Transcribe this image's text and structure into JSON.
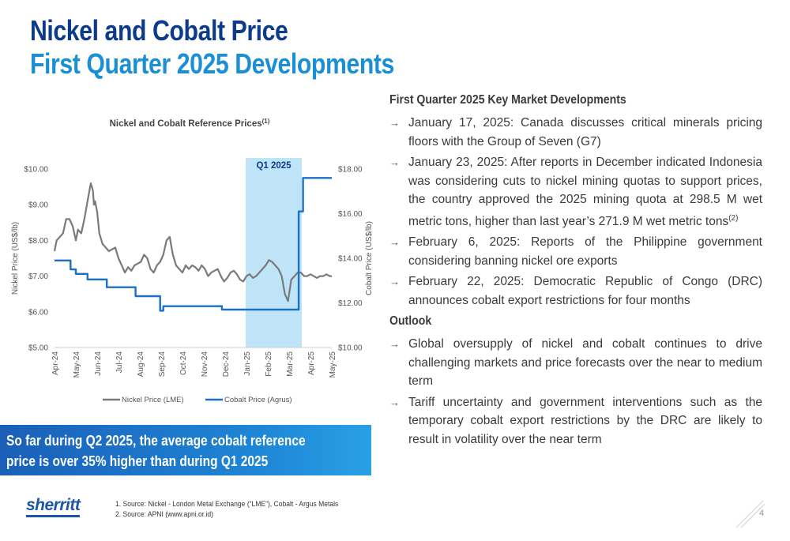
{
  "title": {
    "line1": "Nickel and Cobalt Price",
    "line2": "First Quarter 2025 Developments"
  },
  "chart_data": {
    "type": "line",
    "title": "Nickel and Cobalt Reference Prices",
    "title_sup": "(1)",
    "highlight_label": "Q1 2025",
    "highlight_range": [
      "Jan-25",
      "Mar-25"
    ],
    "categories": [
      "Apr-24",
      "May-24",
      "Jun-24",
      "Jul-24",
      "Aug-24",
      "Sep-24",
      "Oct-24",
      "Nov-24",
      "Dec-24",
      "Jan-25",
      "Feb-25",
      "Mar-25",
      "Apr-25",
      "May-25"
    ],
    "y_left": {
      "label": "Nickel Price (US$/lb)",
      "min": 5,
      "max": 10,
      "ticks": [
        "$5.00",
        "$6.00",
        "$7.00",
        "$8.00",
        "$9.00",
        "$10.00"
      ]
    },
    "y_right": {
      "label": "Cobalt Price (US$/lb)",
      "min": 10,
      "max": 18,
      "ticks": [
        "$10.00",
        "$12.00",
        "$14.00",
        "$16.00",
        "$18.00"
      ]
    },
    "legend_position": "bottom",
    "series": [
      {
        "name": "Nickel Price (LME)",
        "axis": "left",
        "color": "#7a7a7a",
        "x": [
          0,
          0.1,
          0.25,
          0.4,
          0.55,
          0.7,
          0.85,
          1.0,
          1.1,
          1.25,
          1.4,
          1.55,
          1.7,
          1.8,
          1.85,
          1.9,
          2.0,
          2.1,
          2.25,
          2.4,
          2.55,
          2.7,
          2.85,
          3.0,
          3.15,
          3.3,
          3.45,
          3.6,
          3.75,
          3.9,
          4.05,
          4.2,
          4.35,
          4.5,
          4.65,
          4.8,
          4.95,
          5.1,
          5.25,
          5.4,
          5.55,
          5.7,
          5.85,
          6.0,
          6.15,
          6.3,
          6.45,
          6.6,
          6.75,
          6.9,
          7.05,
          7.2,
          7.35,
          7.5,
          7.65,
          7.8,
          7.95,
          8.1,
          8.25,
          8.4,
          8.55,
          8.7,
          8.85,
          9.0,
          9.15,
          9.3,
          9.45,
          9.6,
          9.75,
          9.9,
          10.05,
          10.2,
          10.35,
          10.5,
          10.65,
          10.8,
          10.95,
          11.1,
          11.25,
          11.4,
          11.55,
          11.7,
          11.85,
          12.0,
          12.15,
          12.3,
          12.45,
          12.6,
          12.75,
          12.9,
          13.0
        ],
        "values": [
          7.7,
          8.0,
          8.1,
          8.2,
          8.6,
          8.6,
          8.4,
          8.0,
          8.3,
          8.2,
          8.6,
          9.1,
          9.6,
          9.4,
          9.0,
          9.1,
          8.8,
          8.2,
          7.9,
          7.8,
          7.7,
          7.75,
          7.8,
          7.5,
          7.3,
          7.1,
          7.25,
          7.15,
          7.3,
          7.35,
          7.4,
          7.6,
          7.5,
          7.2,
          7.1,
          7.3,
          7.4,
          7.6,
          8.0,
          8.1,
          7.6,
          7.3,
          7.2,
          7.1,
          7.3,
          7.2,
          7.3,
          7.25,
          7.15,
          7.3,
          7.2,
          7.0,
          7.1,
          7.15,
          7.2,
          7.0,
          6.85,
          6.95,
          7.1,
          7.15,
          7.05,
          6.9,
          6.85,
          7.0,
          7.05,
          6.95,
          7.0,
          7.1,
          7.2,
          7.3,
          7.45,
          7.4,
          7.3,
          7.2,
          7.0,
          6.5,
          6.3,
          6.9,
          7.0,
          7.1,
          7.1,
          7.0,
          7.0,
          7.05,
          7.0,
          6.95,
          7.0,
          7.0,
          7.05,
          7.0,
          7.0
        ]
      },
      {
        "name": "Cobalt Price (Agrus)",
        "axis": "right",
        "color": "#1a6fc8",
        "x": [
          0,
          0.75,
          0.75,
          1.0,
          1.0,
          1.55,
          1.55,
          2.45,
          2.45,
          3.8,
          3.8,
          4.95,
          4.95,
          5.1,
          5.1,
          7.85,
          7.85,
          11.45,
          11.45,
          11.65,
          11.65,
          13.0
        ],
        "values": [
          13.9,
          13.9,
          13.5,
          13.5,
          13.3,
          13.3,
          13.05,
          13.05,
          12.7,
          12.7,
          12.3,
          12.3,
          11.65,
          11.65,
          11.85,
          11.85,
          11.7,
          11.7,
          16.1,
          16.1,
          17.6,
          17.6
        ]
      }
    ]
  },
  "callout": {
    "line1": "So far during Q2 2025, the average cobalt reference",
    "line2": "price is over 35% higher than during Q1 2025"
  },
  "logo": "sherritt",
  "footnotes": [
    "1.   Source: Nickel - London Metal Exchange (“LME”), Cobalt - Argus Metals",
    "2.   Source: APNI (www.apni.or.id)"
  ],
  "developments": {
    "heading": "First Quarter 2025 Key Market Developments",
    "bullets": [
      "January 17, 2025: Canada discusses critical minerals pricing floors with the Group of Seven (G7)",
      "January 23, 2025: After reports in December indicated Indonesia was considering cuts to nickel mining quotas to support prices, the country approved the 2025 mining quota at 298.5 M wet metric tons, higher than last year’s 271.9 M wet metric tons",
      "February 6, 2025: Reports of the Philippine government considering banning nickel ore exports",
      "February 22, 2025: Democratic Republic of Congo (DRC) announces cobalt export restrictions for four months"
    ],
    "bullet2_sup": "(2)"
  },
  "outlook": {
    "heading": "Outlook",
    "bullets": [
      "Global oversupply of nickel and cobalt continues to drive challenging markets and price forecasts over the near to medium term",
      "Tariff uncertainty and government interventions such as the temporary cobalt export restrictions by the DRC are likely to result in volatility over the near term"
    ]
  },
  "arrow_glyph": "→",
  "page_number": "4"
}
